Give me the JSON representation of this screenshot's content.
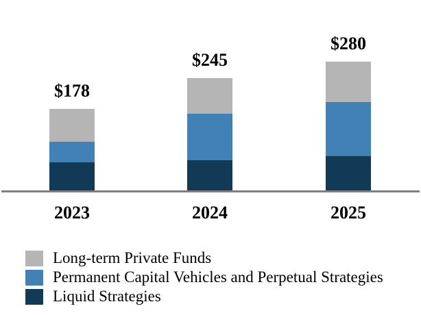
{
  "colors": {
    "background": "#FFFFFF",
    "text": "#000000",
    "long_term_gray": "#B5B5B5",
    "pcv_blue": "#4181B5",
    "liquid_navy": "#123A56",
    "axis_line": "#7F7F7F"
  },
  "chart_data": {
    "type": "bar",
    "stacked": true,
    "title": "",
    "xlabel": "",
    "ylabel": "",
    "categories": [
      "2023",
      "2024",
      "2025"
    ],
    "series": [
      {
        "name": "Liquid Strategies",
        "color": "#123A56",
        "values": [
          62,
          66,
          75
        ]
      },
      {
        "name": "Permanent Capital Vehicles and Perpetual Strategies",
        "color": "#4181B5",
        "values": [
          45,
          102,
          118
        ]
      },
      {
        "name": "Long-term Private Funds",
        "color": "#B5B5B5",
        "values": [
          71,
          77,
          87
        ]
      }
    ],
    "series_order": "bottom-to-top",
    "totals": [
      178,
      245,
      280
    ],
    "total_labels": [
      "$178",
      "$245",
      "$280"
    ],
    "legend_items": [
      {
        "label": "Long-term Private Funds",
        "color": "#B5B5B5"
      },
      {
        "label": "Permanent Capital Vehicles and Perpetual Strategies",
        "color": "#4181B5"
      },
      {
        "label": "Liquid Strategies",
        "color": "#123A56"
      }
    ],
    "legend_position": "bottom-left",
    "axis": {
      "baseline_color": "#7F7F7F",
      "y_axis_visible": false,
      "gridlines": false
    },
    "ylim": [
      0,
      300
    ]
  }
}
